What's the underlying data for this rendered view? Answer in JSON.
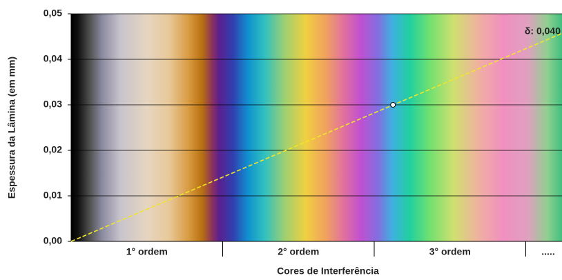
{
  "chart_data": {
    "type": "line",
    "xlabel": "Cores de Interferência",
    "ylabel": "Espessura da Lâmina (em mm)",
    "categories": [
      "1° ordem",
      "2° ordem",
      "3° ordem",
      "....."
    ],
    "xlim": [
      0,
      1830
    ],
    "ylim": [
      0,
      0.05
    ],
    "yticks": [
      {
        "value": 0,
        "label": "0,00"
      },
      {
        "value": 0.01,
        "label": "0,01"
      },
      {
        "value": 0.02,
        "label": "0,02"
      },
      {
        "value": 0.03,
        "label": "0,03"
      },
      {
        "value": 0.04,
        "label": "0,04"
      },
      {
        "value": 0.05,
        "label": "0,05"
      }
    ],
    "grid": true,
    "series": [
      {
        "name": "δ: 0,040",
        "color": "#f2e62a",
        "x": [
          0,
          1830
        ],
        "values": [
          0,
          0.0457
        ]
      }
    ],
    "point": {
      "x": 1200,
      "y": 0.03
    }
  }
}
